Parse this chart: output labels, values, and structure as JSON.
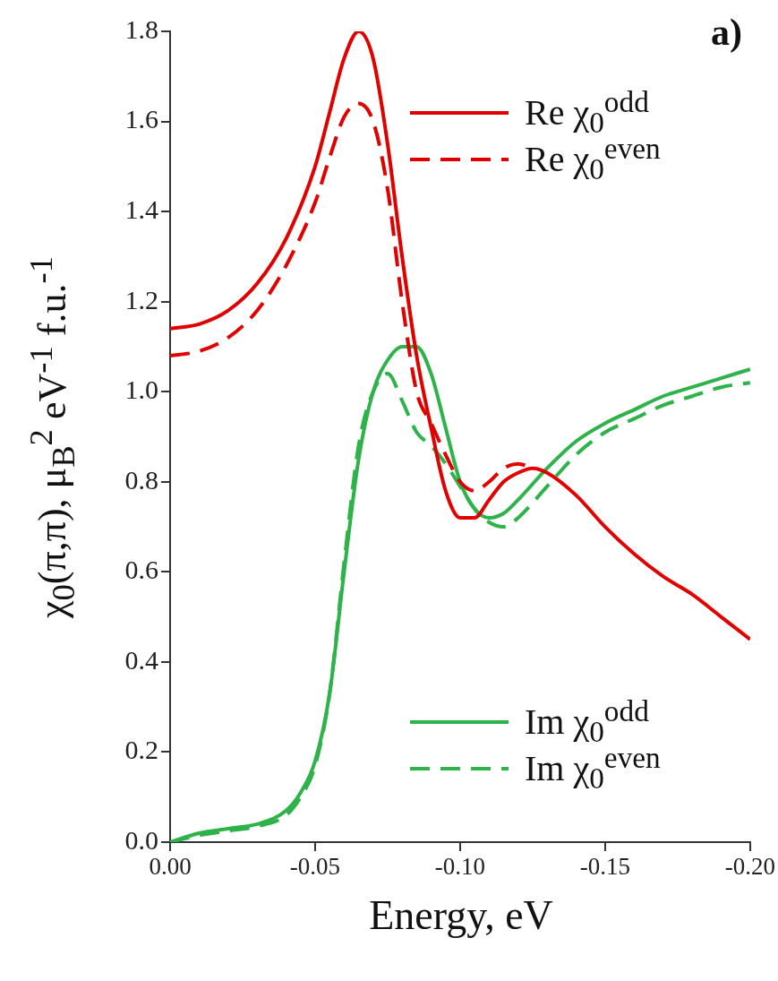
{
  "chart_data": {
    "type": "line",
    "annotations": [
      "a)"
    ],
    "xlabel": "Energy, eV",
    "ylabel": "χ$_{0}$(π,π), μ$_{B}$$^{2}$ eV$^{-1}$ f.u.$^{-1}$",
    "xlim": [
      0,
      -0.2
    ],
    "ylim": [
      0,
      1.8
    ],
    "xticks": [
      {
        "value": 0,
        "label": "0.00"
      },
      {
        "value": -0.05,
        "label": "-0.05"
      },
      {
        "value": -0.1,
        "label": "-0.10"
      },
      {
        "value": -0.15,
        "label": "-0.15"
      },
      {
        "value": -0.2,
        "label": "-0.20"
      }
    ],
    "yticks": [
      {
        "value": 0,
        "label": "0.0"
      },
      {
        "value": 0.2,
        "label": "0.2"
      },
      {
        "value": 0.4,
        "label": "0.4"
      },
      {
        "value": 0.6,
        "label": "0.6"
      },
      {
        "value": 0.8,
        "label": "0.8"
      },
      {
        "value": 1.0,
        "label": "1.0"
      },
      {
        "value": 1.2,
        "label": "1.2"
      },
      {
        "value": 1.4,
        "label": "1.4"
      },
      {
        "value": 1.6,
        "label": "1.6"
      },
      {
        "value": 1.8,
        "label": "1.8"
      }
    ],
    "grid": false,
    "legend": "right",
    "marker": "none",
    "series": [
      {
        "name": "Re χ$_{0}$$^{odd}$",
        "color": "#e00000",
        "line_style": "solid",
        "x": [
          0,
          -0.01,
          -0.02,
          -0.03,
          -0.04,
          -0.05,
          -0.055,
          -0.06,
          -0.065,
          -0.07,
          -0.075,
          -0.08,
          -0.085,
          -0.09,
          -0.095,
          -0.1,
          -0.105,
          -0.11,
          -0.115,
          -0.12,
          -0.125,
          -0.13,
          -0.14,
          -0.15,
          -0.16,
          -0.17,
          -0.18,
          -0.19,
          -0.2
        ],
        "values": [
          1.14,
          1.15,
          1.18,
          1.24,
          1.34,
          1.5,
          1.62,
          1.74,
          1.8,
          1.74,
          1.55,
          1.3,
          1.08,
          0.92,
          0.78,
          0.72,
          0.72,
          0.76,
          0.8,
          0.82,
          0.83,
          0.82,
          0.77,
          0.7,
          0.64,
          0.59,
          0.55,
          0.5,
          0.45
        ]
      },
      {
        "name": "Re χ$_{0}$$^{even}$",
        "color": "#e00000",
        "line_style": "dashed",
        "x": [
          0,
          -0.01,
          -0.02,
          -0.03,
          -0.04,
          -0.05,
          -0.055,
          -0.06,
          -0.065,
          -0.07,
          -0.075,
          -0.08,
          -0.085,
          -0.09,
          -0.095,
          -0.1,
          -0.105,
          -0.11,
          -0.115,
          -0.12,
          -0.125
        ],
        "values": [
          1.08,
          1.09,
          1.12,
          1.18,
          1.28,
          1.42,
          1.52,
          1.61,
          1.64,
          1.6,
          1.45,
          1.2,
          1.0,
          0.93,
          0.86,
          0.8,
          0.78,
          0.8,
          0.83,
          0.84,
          0.83
        ]
      },
      {
        "name": "Im χ$_{0}$$^{odd}$",
        "color": "#2eb34a",
        "line_style": "solid",
        "x": [
          0,
          -0.01,
          -0.02,
          -0.03,
          -0.04,
          -0.045,
          -0.05,
          -0.055,
          -0.06,
          -0.065,
          -0.07,
          -0.075,
          -0.08,
          -0.085,
          -0.09,
          -0.095,
          -0.1,
          -0.105,
          -0.11,
          -0.115,
          -0.12,
          -0.13,
          -0.14,
          -0.15,
          -0.16,
          -0.17,
          -0.18,
          -0.19,
          -0.2
        ],
        "values": [
          0,
          0.02,
          0.03,
          0.04,
          0.07,
          0.11,
          0.18,
          0.33,
          0.6,
          0.85,
          1.0,
          1.07,
          1.1,
          1.1,
          1.04,
          0.92,
          0.8,
          0.74,
          0.72,
          0.73,
          0.76,
          0.83,
          0.89,
          0.93,
          0.96,
          0.99,
          1.01,
          1.03,
          1.05
        ]
      },
      {
        "name": "Im χ$_{0}$$^{even}$",
        "color": "#2eb34a",
        "line_style": "dashed",
        "x": [
          0,
          -0.01,
          -0.02,
          -0.03,
          -0.04,
          -0.045,
          -0.05,
          -0.055,
          -0.06,
          -0.065,
          -0.07,
          -0.075,
          -0.08,
          -0.085,
          -0.09,
          -0.095,
          -0.1,
          -0.105,
          -0.11,
          -0.115,
          -0.12,
          -0.13,
          -0.14,
          -0.15,
          -0.16,
          -0.17,
          -0.18,
          -0.19,
          -0.2
        ],
        "values": [
          0,
          0.015,
          0.025,
          0.035,
          0.06,
          0.1,
          0.17,
          0.33,
          0.62,
          0.88,
          1.0,
          1.04,
          0.98,
          0.91,
          0.88,
          0.84,
          0.79,
          0.74,
          0.71,
          0.7,
          0.72,
          0.79,
          0.86,
          0.91,
          0.94,
          0.97,
          0.99,
          1.01,
          1.02
        ]
      }
    ]
  }
}
